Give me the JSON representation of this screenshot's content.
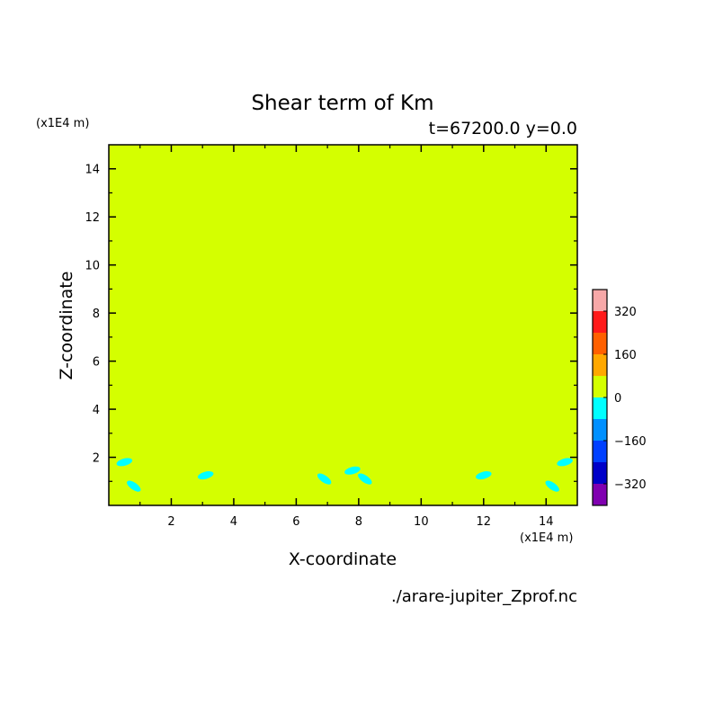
{
  "chart_data": {
    "type": "heatmap",
    "title": "Shear term of Km",
    "subtitle": "t=67200.0 y=0.0",
    "xlabel": "X-coordinate",
    "ylabel": "Z-coordinate",
    "x_unit": "(x1E4 m)",
    "y_unit": "(x1E4 m)",
    "source_file": "./arare-jupiter_Zprof.nc",
    "xlim": [
      0,
      15
    ],
    "ylim": [
      0,
      15
    ],
    "x_ticks": [
      2,
      4,
      6,
      8,
      10,
      12,
      14
    ],
    "y_ticks": [
      2,
      4,
      6,
      8,
      10,
      12,
      14
    ],
    "x_tick_labels": [
      "2",
      "4",
      "6",
      "8",
      "10",
      "12",
      "14"
    ],
    "y_tick_labels": [
      "2",
      "4",
      "6",
      "8",
      "10",
      "12",
      "14"
    ],
    "background_level": "0 to 80",
    "colorbar": {
      "levels": [
        {
          "range": [
            320,
            400
          ],
          "color": "#f7a8a8"
        },
        {
          "range": [
            240,
            320
          ],
          "color": "#ff1a1a"
        },
        {
          "range": [
            160,
            240
          ],
          "color": "#ff6000"
        },
        {
          "range": [
            80,
            160
          ],
          "color": "#ffa800"
        },
        {
          "range": [
            0,
            80
          ],
          "color": "#d4ff00"
        },
        {
          "range": [
            -80,
            0
          ],
          "color": "#00ffff"
        },
        {
          "range": [
            -160,
            -80
          ],
          "color": "#0090ff"
        },
        {
          "range": [
            -240,
            -160
          ],
          "color": "#0040ff"
        },
        {
          "range": [
            -320,
            -240
          ],
          "color": "#0000c8"
        },
        {
          "range": [
            -400,
            -320
          ],
          "color": "#8000b0"
        }
      ],
      "tick_values": [
        320,
        160,
        0,
        -160,
        -320
      ],
      "tick_labels": [
        "320",
        "160",
        "0",
        "−160",
        "−320"
      ]
    },
    "negative_regions": [
      {
        "x": 0.5,
        "z": 1.8
      },
      {
        "x": 0.8,
        "z": 0.8
      },
      {
        "x": 3.1,
        "z": 1.25
      },
      {
        "x": 6.9,
        "z": 1.1
      },
      {
        "x": 7.8,
        "z": 1.45
      },
      {
        "x": 8.2,
        "z": 1.1
      },
      {
        "x": 12.0,
        "z": 1.25
      },
      {
        "x": 14.2,
        "z": 0.8
      },
      {
        "x": 14.6,
        "z": 1.8
      }
    ]
  }
}
